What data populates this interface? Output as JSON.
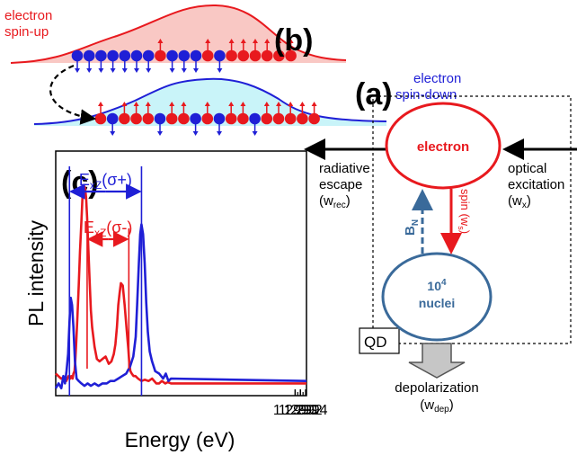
{
  "panel_labels": {
    "a": "(a)",
    "b": "(b)",
    "c": "(c)"
  },
  "panel_b": {
    "spin_up_label_line1": "electron",
    "spin_up_label_line2": "spin-up",
    "spin_down_label_line1": "electron",
    "spin_down_label_line2": "spin-down"
  },
  "panel_a": {
    "electron": "electron",
    "nuclei_count": "10",
    "nuclei_exp": "4",
    "nuclei_label": "nuclei",
    "qd_label": "QD",
    "radiative_line1": "radiative",
    "radiative_line2": "escape",
    "radiative_rate_prefix": "(w",
    "radiative_rate_sub": "rec",
    "radiative_rate_suffix": ")",
    "optical_line1": "optical",
    "optical_line2": "excitation",
    "optical_rate_prefix": "(w",
    "optical_rate_sub": "x",
    "optical_rate_suffix": ")",
    "spin_text": "spin (w",
    "spin_sub": "s",
    "spin_suffix": ")",
    "bn_main": "B",
    "bn_sub": "N",
    "depol_label": "depolarization",
    "depol_rate_prefix": "(w",
    "depol_rate_sub": "dep",
    "depol_rate_suffix": ")"
  },
  "chart_data": {
    "type": "line",
    "xlabel": "Energy (eV)",
    "ylabel": "PL intensity",
    "xlim": [
      1.28993,
      1.29943
    ],
    "ylim": [
      0,
      1.0
    ],
    "x_ticks": [
      1.299,
      1.2992,
      1.2994
    ],
    "x_tick_labels": [
      "1.2990",
      "1.2992",
      "1.2994"
    ],
    "series": [
      {
        "color": "#e8191e",
        "x": [
          1.28993,
          1.29013,
          1.29025,
          1.29033,
          1.29042,
          1.29048,
          1.29052,
          1.29057,
          1.2906,
          1.29064,
          1.29067,
          1.2907,
          1.29075,
          1.2908,
          1.29085,
          1.29091,
          1.29095,
          1.29099,
          1.29104,
          1.29108,
          1.29112,
          1.29116,
          1.29121,
          1.29126,
          1.29131,
          1.2914,
          1.29149,
          1.29159,
          1.2917,
          1.29182,
          1.29194,
          1.29204,
          1.29213,
          1.29219,
          1.29225,
          1.2923,
          1.29235,
          1.2924,
          1.29247,
          1.29254,
          1.29261,
          1.29268,
          1.29272,
          1.29276,
          1.29281,
          1.29288,
          1.29295,
          1.29305,
          1.29318,
          1.2933,
          1.29345,
          1.29358,
          1.29374,
          1.29385,
          1.29395,
          1.29408,
          1.29418,
          1.2943,
          1.29943
        ],
        "y": [
          0.09,
          0.07,
          0.075,
          0.06,
          0.08,
          0.07,
          0.08,
          0.07,
          0.09,
          0.1,
          0.14,
          0.2,
          0.32,
          0.45,
          0.59,
          0.73,
          0.83,
          0.86,
          0.85,
          0.81,
          0.73,
          0.62,
          0.48,
          0.35,
          0.28,
          0.2,
          0.15,
          0.14,
          0.15,
          0.16,
          0.13,
          0.14,
          0.17,
          0.21,
          0.28,
          0.37,
          0.42,
          0.46,
          0.45,
          0.37,
          0.28,
          0.19,
          0.13,
          0.1,
          0.09,
          0.08,
          0.08,
          0.07,
          0.06,
          0.065,
          0.06,
          0.07,
          0.05,
          0.05,
          0.06,
          0.05,
          0.055,
          0.05,
          0.05
        ]
      },
      {
        "color": "#1f1fd6",
        "x": [
          1.28993,
          1.29004,
          1.29014,
          1.29022,
          1.29028,
          1.29034,
          1.2904,
          1.29045,
          1.2905,
          1.29055,
          1.2906,
          1.29066,
          1.29072,
          1.2908,
          1.2909,
          1.29102,
          1.29114,
          1.29126,
          1.2914,
          1.29155,
          1.2917,
          1.29186,
          1.292,
          1.29215,
          1.2923,
          1.29245,
          1.2926,
          1.29275,
          1.29287,
          1.29296,
          1.29302,
          1.29308,
          1.29313,
          1.29318,
          1.29324,
          1.2933,
          1.29336,
          1.29342,
          1.29349,
          1.29358,
          1.2937,
          1.29385,
          1.294,
          1.2941,
          1.2942,
          1.2943,
          1.29943
        ],
        "y": [
          0.03,
          0.05,
          0.03,
          0.08,
          0.05,
          0.1,
          0.17,
          0.3,
          0.4,
          0.37,
          0.28,
          0.14,
          0.07,
          0.06,
          0.05,
          0.04,
          0.05,
          0.04,
          0.05,
          0.04,
          0.05,
          0.05,
          0.06,
          0.06,
          0.07,
          0.08,
          0.09,
          0.12,
          0.16,
          0.24,
          0.38,
          0.54,
          0.66,
          0.7,
          0.66,
          0.54,
          0.38,
          0.26,
          0.18,
          0.14,
          0.1,
          0.09,
          0.07,
          0.09,
          0.06,
          0.07,
          0.06
        ]
      }
    ],
    "annotations": [
      {
        "color": "#1f1fd6",
        "main": "E",
        "sub": "xZ",
        "paren": "(σ+)",
        "from": 1.29045,
        "to": 1.29318
      },
      {
        "color": "#e8191e",
        "main": "E",
        "sub": "xZ",
        "paren": "(σ-)",
        "from": 1.29112,
        "to": 1.2927
      }
    ],
    "colors": {
      "red": "#e8191e",
      "blue": "#1f1fd6",
      "dark_blue": "#3a6a9a"
    }
  }
}
